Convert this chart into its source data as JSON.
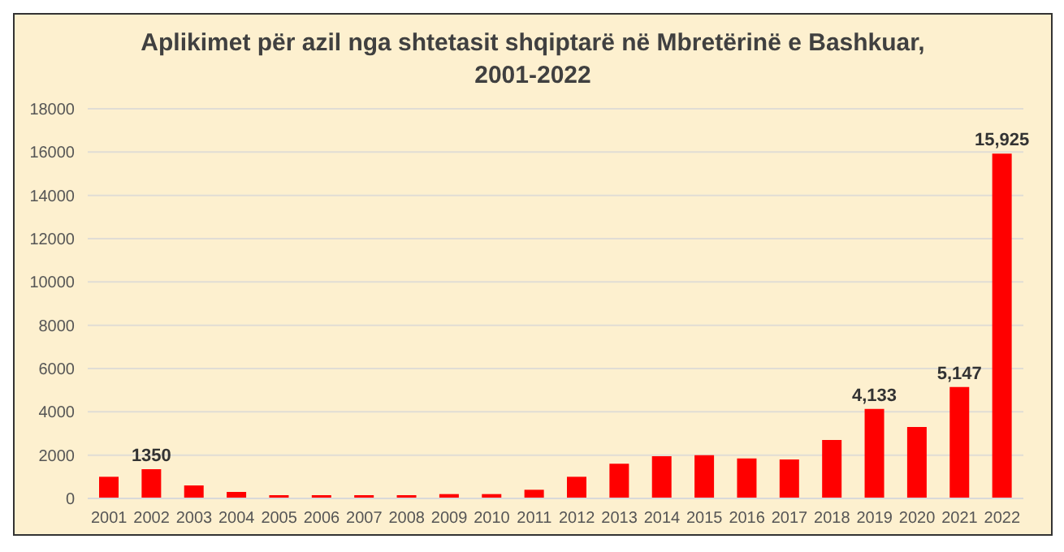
{
  "chart_data": {
    "type": "bar",
    "title": "Aplikimet për azil nga shtetasit shqiptarë në Mbretërinë e Bashkuar, 2001-2022",
    "categories": [
      "2001",
      "2002",
      "2003",
      "2004",
      "2005",
      "2006",
      "2007",
      "2008",
      "2009",
      "2010",
      "2011",
      "2012",
      "2013",
      "2014",
      "2015",
      "2016",
      "2017",
      "2018",
      "2019",
      "2020",
      "2021",
      "2022"
    ],
    "values": [
      1000,
      1350,
      600,
      300,
      150,
      150,
      150,
      150,
      200,
      200,
      400,
      1000,
      1600,
      1950,
      2000,
      1850,
      1800,
      2700,
      4133,
      3300,
      5147,
      15925
    ],
    "value_labels": [
      null,
      "1350",
      null,
      null,
      null,
      null,
      null,
      null,
      null,
      null,
      null,
      null,
      null,
      null,
      null,
      null,
      null,
      null,
      "4,133",
      null,
      "5,147",
      "15,925"
    ],
    "color": "#ff0000",
    "ylim": [
      0,
      18000
    ],
    "yticks": [
      0,
      2000,
      4000,
      6000,
      8000,
      10000,
      12000,
      14000,
      16000,
      18000
    ],
    "grid": "y"
  }
}
